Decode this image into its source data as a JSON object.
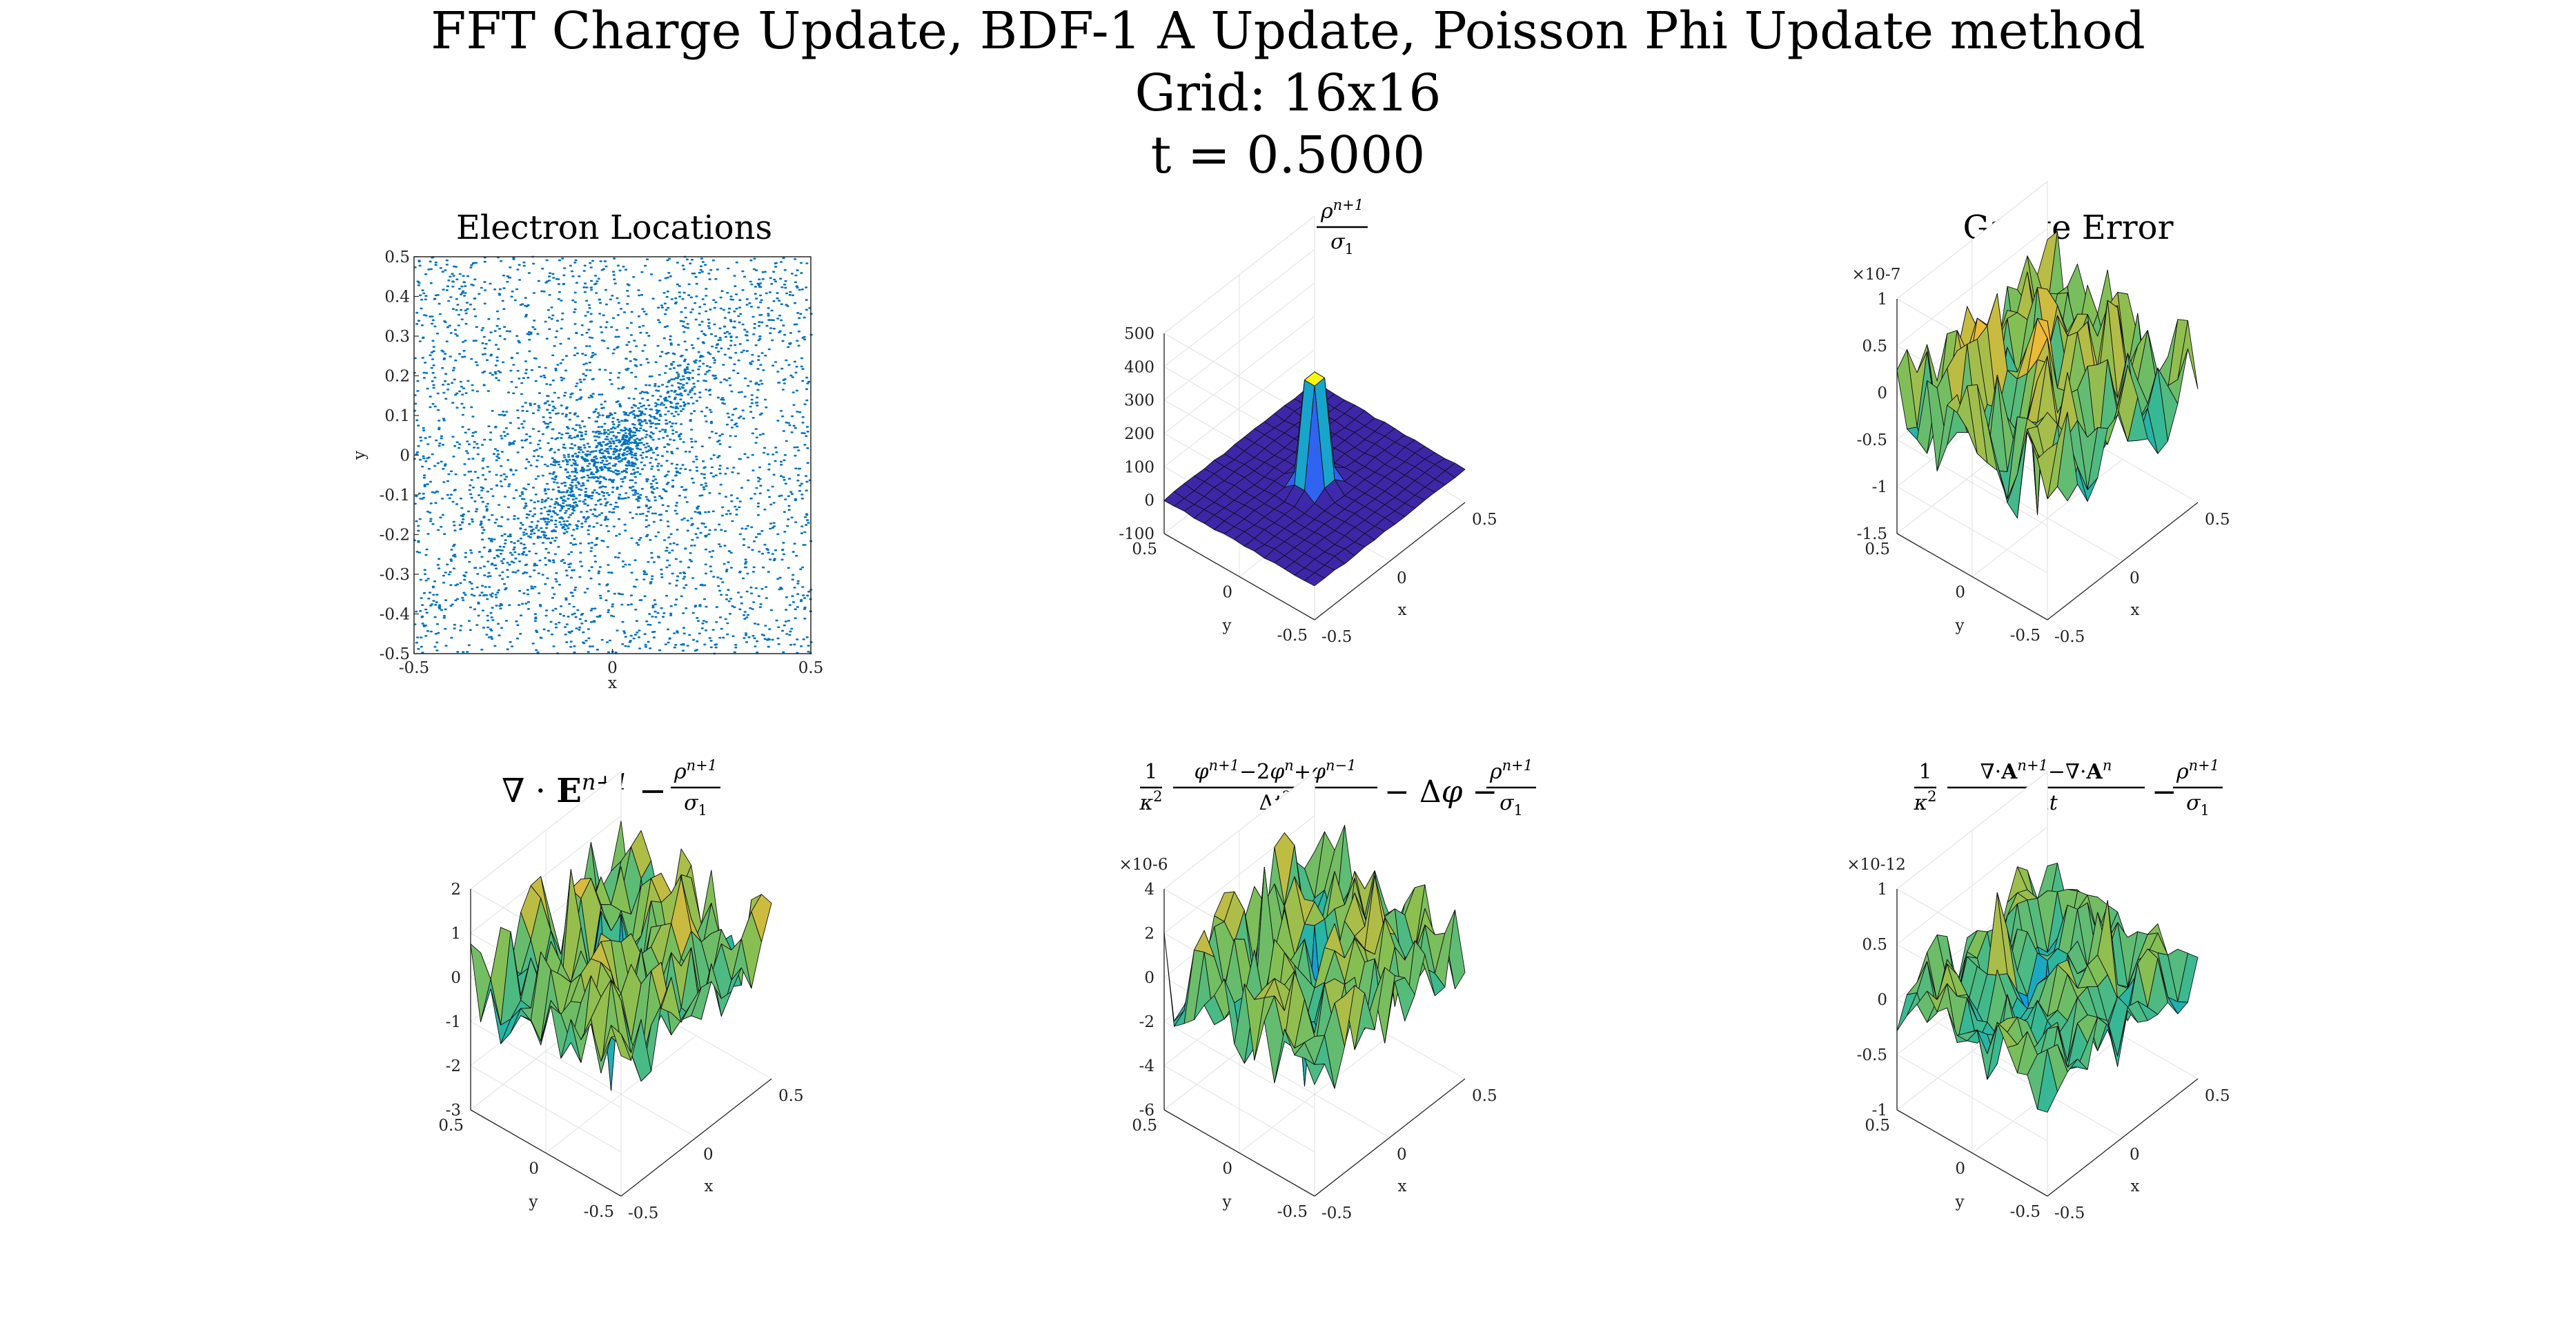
{
  "figure": {
    "title_line1": "FFT Charge Update, BDF-1 A Update, Poisson Phi Update method",
    "title_line2": "Grid: 16x16",
    "title_line3": "t = 0.5000"
  },
  "colors": {
    "scatter": "#0072bd",
    "surface_dark": "#3e26a8",
    "surface_mid": "#2eb7a0",
    "surface_yellow": "#f9fb0e",
    "grid": "#e6e6e6",
    "edge": "#111111"
  },
  "chart_data": [
    {
      "type": "scatter",
      "id": "electron-locations",
      "title": "Electron Locations",
      "xlabel": "x",
      "ylabel": "y",
      "xlim": [
        -0.5,
        0.5
      ],
      "ylim": [
        -0.5,
        0.5
      ],
      "xticks": [
        "-0.5",
        "0",
        "0.5"
      ],
      "yticks": [
        "-0.5",
        "-0.4",
        "-0.3",
        "-0.2",
        "-0.1",
        "0",
        "0.1",
        "0.2",
        "0.3",
        "0.4",
        "0.5"
      ],
      "point_count": 16000,
      "distribution": "uniform background with a dense diagonal band concentrated near the center (0,0) and along y = x"
    },
    {
      "type": "surface",
      "id": "rho-over-sigma",
      "title_math": "rho^{n+1} / sigma_1",
      "xlabel": "x",
      "ylabel": "y",
      "xlim": [
        -0.5,
        0.5
      ],
      "ylim": [
        -0.5,
        0.5
      ],
      "zlim": [
        -100,
        500
      ],
      "xticks": [
        "-0.5",
        "0",
        "0.5"
      ],
      "yticks": [
        "-0.5",
        "0",
        "0.5"
      ],
      "zticks": [
        "-100",
        "0",
        "100",
        "200",
        "300",
        "400",
        "500"
      ],
      "grid": "16x16",
      "baseline": 0,
      "peak": 430,
      "peak_location": [
        0,
        0
      ],
      "shape": "flat sheet near 0 with a sharp spike at the center"
    },
    {
      "type": "surface",
      "id": "gauge-error",
      "title": "Gauge Error",
      "xlabel": "x",
      "ylabel": "y",
      "xlim": [
        -0.5,
        0.5
      ],
      "ylim": [
        -0.5,
        0.5
      ],
      "zlim": [
        -1.5,
        1
      ],
      "z_exponent": "×10^{-7}",
      "xticks": [
        "-0.5",
        "0",
        "0.5"
      ],
      "yticks": [
        "-0.5",
        "0",
        "0.5"
      ],
      "zticks": [
        "-1.5",
        "-1",
        "-0.5",
        "0",
        "0.5",
        "1"
      ],
      "grid": "16x16",
      "amplitude": 0.5,
      "peak": 0.8,
      "trough": -1.6
    },
    {
      "type": "surface",
      "id": "div-e-residual",
      "title_math": "∇ · E^{n+1} − rho^{n+1}/sigma_1",
      "xlabel": "x",
      "ylabel": "y",
      "xlim": [
        -0.5,
        0.5
      ],
      "ylim": [
        -0.5,
        0.5
      ],
      "zlim": [
        -3,
        2
      ],
      "xticks": [
        "-0.5",
        "0",
        "0.5"
      ],
      "yticks": [
        "-0.5",
        "0",
        "0.5"
      ],
      "zticks": [
        "-3",
        "-2",
        "-1",
        "0",
        "1",
        "2"
      ],
      "grid": "16x16",
      "amplitude": 1.0,
      "peak": 1.9,
      "trough": -3.2
    },
    {
      "type": "surface",
      "id": "phi-wave-residual",
      "title_math": "(1/κ²)(φ^{n+1} − 2φ^n + φ^{n−1})/Δt² − Δφ − rho^{n+1}/sigma_1",
      "xlabel": "x",
      "ylabel": "y",
      "xlim": [
        -0.5,
        0.5
      ],
      "ylim": [
        -0.5,
        0.5
      ],
      "zlim": [
        -6,
        4
      ],
      "z_exponent": "×10^{-6}",
      "xticks": [
        "-0.5",
        "0",
        "0.5"
      ],
      "yticks": [
        "-0.5",
        "0",
        "0.5"
      ],
      "zticks": [
        "-6",
        "-4",
        "-2",
        "0",
        "2",
        "4"
      ],
      "grid": "16x16",
      "amplitude": 2.0,
      "peak": 3.9,
      "trough": -6.2
    },
    {
      "type": "surface",
      "id": "a-divergence-residual",
      "title_math": "(1/κ²)(∇·A^{n+1} − ∇·A^n)/Δt − rho^{n+1}/sigma_1",
      "xlabel": "x",
      "ylabel": "y",
      "xlim": [
        -0.5,
        0.5
      ],
      "ylim": [
        -0.5,
        0.5
      ],
      "zlim": [
        -1,
        1
      ],
      "z_exponent": "×10^{-12}",
      "xticks": [
        "-0.5",
        "0",
        "0.5"
      ],
      "yticks": [
        "-0.5",
        "0",
        "0.5"
      ],
      "zticks": [
        "-1",
        "-0.5",
        "0",
        "0.5",
        "1"
      ],
      "grid": "16x16",
      "amplitude": 0.3,
      "peak": 0.75,
      "trough": -1.05
    }
  ]
}
